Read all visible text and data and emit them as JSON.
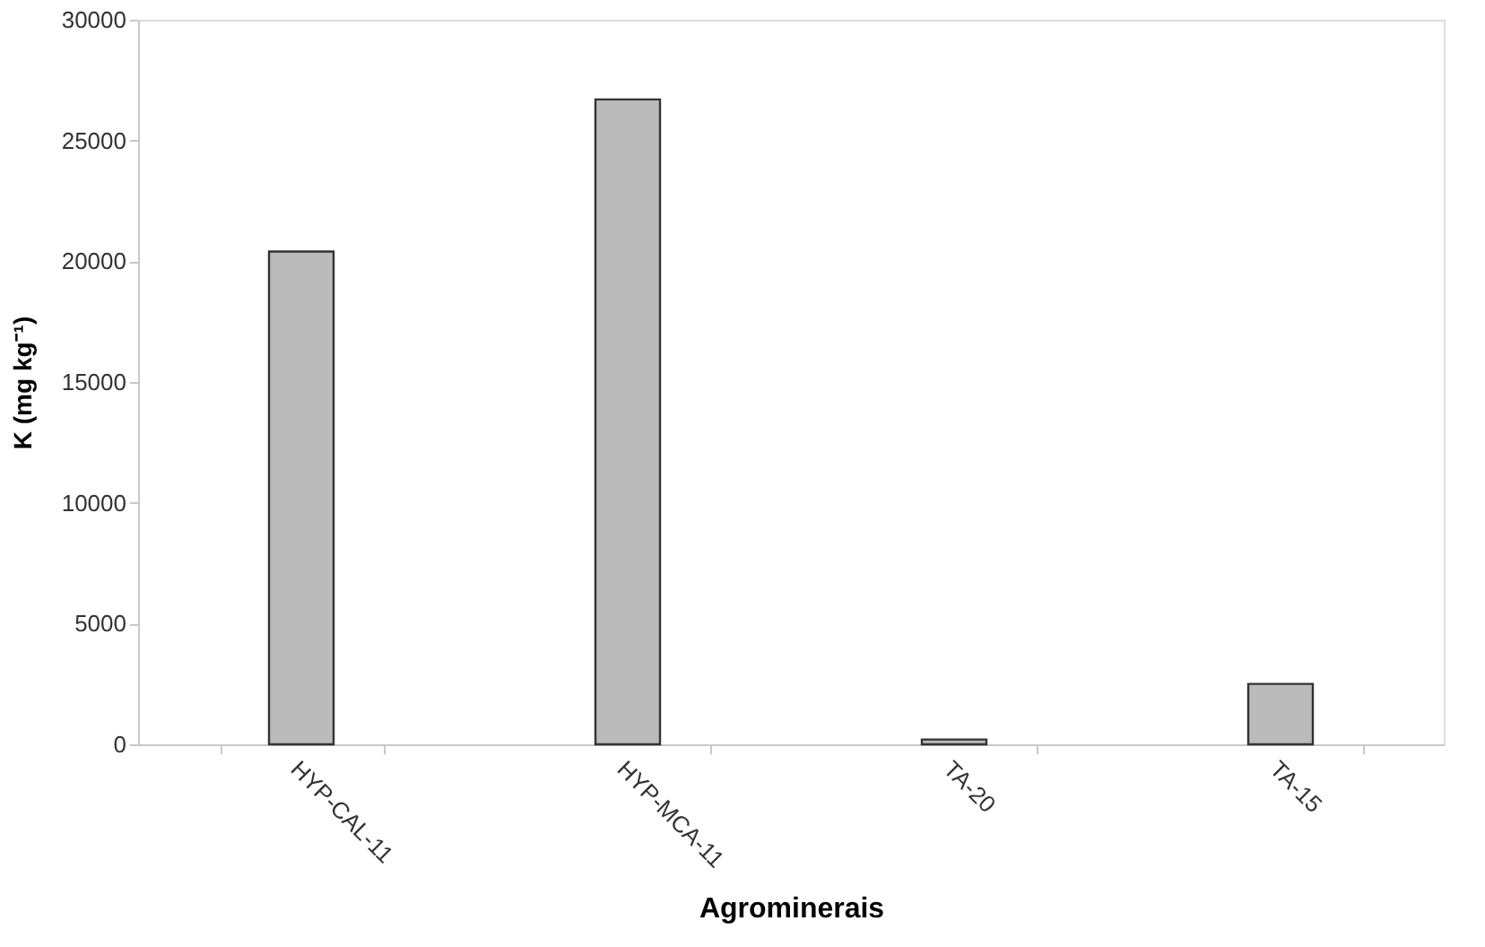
{
  "chart_data": {
    "type": "bar",
    "xlabel": "Agrominerais",
    "ylabel": "K (mg kg⁻¹)",
    "categories": [
      "HYP-CAL-11",
      "HYP-MCA-11",
      "TA-20",
      "TA-15"
    ],
    "values": [
      20400,
      26700,
      200,
      2500
    ],
    "color": "#bbbbbb",
    "ylim": [
      0,
      30000
    ],
    "yticks": [
      0,
      5000,
      10000,
      15000,
      20000,
      25000,
      30000
    ],
    "grid": false
  }
}
